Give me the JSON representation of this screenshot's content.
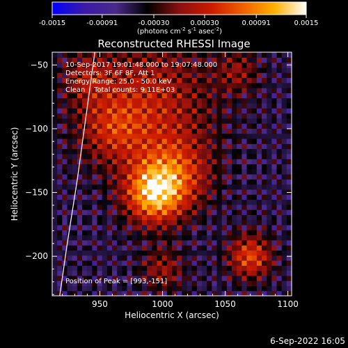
{
  "chart_data": {
    "type": "heatmap",
    "title": "Reconstructed RHESSI Image",
    "xlabel": "Heliocentric X (arcsec)",
    "ylabel": "Heliocentric Y (arcsec)",
    "xlim": [
      912,
      1103
    ],
    "ylim": [
      -231,
      -40
    ],
    "x_ticks": [
      950,
      1000,
      1050,
      1100
    ],
    "y_ticks": [
      -50,
      -100,
      -150,
      -200
    ],
    "grid": false,
    "colorbar": {
      "label": "(photons cm^-2 s^-1 asec^-2)",
      "label_base": "(photons cm",
      "label_exp1": "-2",
      "label_mid": " s",
      "label_exp2": "-1",
      "label_tail": " asec",
      "label_exp3": "-2",
      "label_end": ")",
      "range": [
        -0.0015,
        0.0015
      ],
      "ticks": [
        "-0.0015",
        "-0.00091",
        "-0.00030",
        "0.00030",
        "0.00091",
        "0.0015"
      ],
      "stops": [
        "#0000ff",
        "#3a1aa8",
        "#4a2a8a",
        "#000000",
        "#8a1010",
        "#cc1a00",
        "#f06000",
        "#ffb000",
        "#ffffff"
      ]
    },
    "annotations": [
      "10-Sep-2017 19:01:48.000 to 19:07:48.000",
      "Detectors: 3F 6F 8F, Att 1",
      "Energy Range: 25.0 - 50.0 keV",
      "Clean    Total counts: 9.11E+03",
      "Position of Peak = [993,-151]"
    ],
    "peak": {
      "x": 993,
      "y": -151
    },
    "sources": [
      {
        "x": 990,
        "y": -80,
        "intensity": 0.0008,
        "sigma": 35
      },
      {
        "x": 993,
        "y": -151,
        "intensity": 0.0015,
        "sigma": 16
      },
      {
        "x": 1010,
        "y": -135,
        "intensity": 0.0009,
        "sigma": 20
      },
      {
        "x": 1070,
        "y": -200,
        "intensity": 0.0011,
        "sigma": 12
      },
      {
        "x": 960,
        "y": -100,
        "intensity": 0.0006,
        "sigma": 18
      },
      {
        "x": 940,
        "y": -60,
        "intensity": 0.0005,
        "sigma": 14
      },
      {
        "x": 1060,
        "y": -55,
        "intensity": 0.0005,
        "sigma": 12
      },
      {
        "x": 1000,
        "y": -210,
        "intensity": 0.0006,
        "sigma": 12
      }
    ],
    "limb_color": "#ffffff",
    "limb_points": [
      [
        946,
        -40
      ],
      [
        939,
        -90
      ],
      [
        932,
        -140
      ],
      [
        924,
        -190
      ],
      [
        918,
        -231
      ]
    ]
  },
  "footer": {
    "timestamp": "6-Sep-2022 16:05"
  }
}
